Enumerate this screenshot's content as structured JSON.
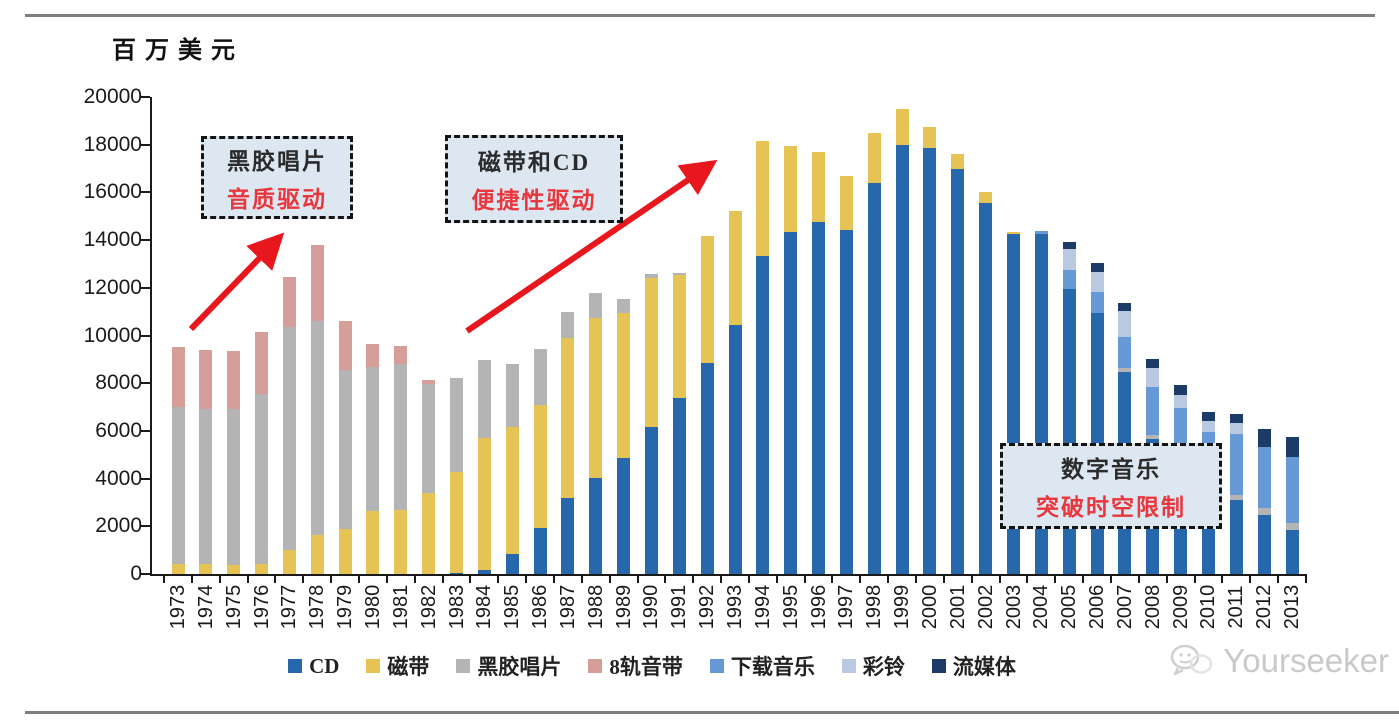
{
  "page": {
    "y_axis_title": "百万美元",
    "watermark": "Yourseeker"
  },
  "chart_data": {
    "type": "bar",
    "stacked": true,
    "title": "",
    "xlabel": "",
    "ylabel": "百万美元",
    "ylim": [
      0,
      20000
    ],
    "ytick_step": 2000,
    "grid": false,
    "legend_position": "bottom",
    "categories": [
      "1973",
      "1974",
      "1975",
      "1976",
      "1977",
      "1978",
      "1979",
      "1980",
      "1981",
      "1982",
      "1983",
      "1984",
      "1985",
      "1986",
      "1987",
      "1988",
      "1989",
      "1990",
      "1991",
      "1992",
      "1993",
      "1994",
      "1995",
      "1996",
      "1997",
      "1998",
      "1999",
      "2000",
      "2001",
      "2002",
      "2003",
      "2004",
      "2005",
      "2006",
      "2007",
      "2008",
      "2009",
      "2010",
      "2011",
      "2012",
      "2013"
    ],
    "series": [
      {
        "name": "CD",
        "color": "#2767ab",
        "values": [
          0,
          0,
          0,
          0,
          0,
          0,
          0,
          0,
          0,
          0,
          50,
          150,
          830,
          1920,
          3170,
          4010,
          4850,
          6150,
          7400,
          8840,
          10440,
          13350,
          14350,
          14770,
          14420,
          16380,
          17990,
          17850,
          16980,
          15540,
          14250,
          14260,
          11950,
          10950,
          8480,
          5650,
          4570,
          3660,
          3110,
          2470,
          1850
        ]
      },
      {
        "name": "磁带",
        "color": "#e5c455",
        "values": [
          440,
          400,
          380,
          440,
          1000,
          1630,
          1900,
          2630,
          2700,
          3400,
          4240,
          5560,
          5350,
          5170,
          6710,
          6710,
          6110,
          6250,
          5120,
          5350,
          4770,
          4790,
          3580,
          2920,
          2270,
          2100,
          1510,
          910,
          620,
          490,
          100,
          0,
          0,
          0,
          0,
          0,
          0,
          0,
          0,
          0,
          0
        ]
      },
      {
        "name": "黑胶唱片",
        "color": "#b4b4b4",
        "values": [
          6560,
          6530,
          6520,
          7090,
          9350,
          8960,
          6670,
          6040,
          6110,
          4580,
          3940,
          3260,
          2620,
          2340,
          1090,
          1080,
          560,
          170,
          100,
          0,
          0,
          0,
          0,
          0,
          0,
          0,
          0,
          0,
          0,
          0,
          0,
          0,
          0,
          0,
          140,
          180,
          210,
          180,
          210,
          280,
          280
        ]
      },
      {
        "name": "8轨音带",
        "color": "#d69e98",
        "values": [
          2500,
          2470,
          2460,
          2610,
          2110,
          3190,
          2040,
          970,
          730,
          150,
          0,
          0,
          0,
          0,
          0,
          0,
          0,
          0,
          0,
          0,
          0,
          0,
          0,
          0,
          0,
          0,
          0,
          0,
          0,
          0,
          0,
          0,
          0,
          0,
          0,
          0,
          0,
          0,
          0,
          0,
          0
        ]
      },
      {
        "name": "下载音乐",
        "color": "#6699d6",
        "values": [
          0,
          0,
          0,
          0,
          0,
          0,
          0,
          0,
          0,
          0,
          0,
          0,
          0,
          0,
          0,
          0,
          0,
          0,
          0,
          0,
          0,
          0,
          0,
          0,
          0,
          0,
          0,
          0,
          0,
          0,
          0,
          140,
          780,
          880,
          1330,
          2030,
          2170,
          2120,
          2540,
          2590,
          2770
        ]
      },
      {
        "name": "彩铃",
        "color": "#b9c9e2",
        "values": [
          0,
          0,
          0,
          0,
          0,
          0,
          0,
          0,
          0,
          0,
          0,
          0,
          0,
          0,
          0,
          0,
          0,
          0,
          0,
          0,
          0,
          0,
          0,
          0,
          0,
          0,
          0,
          0,
          0,
          0,
          0,
          0,
          890,
          850,
          1080,
          770,
          560,
          450,
          460,
          0,
          0
        ]
      },
      {
        "name": "流媒体",
        "color": "#1c3b66",
        "values": [
          0,
          0,
          0,
          0,
          0,
          0,
          0,
          0,
          0,
          0,
          0,
          0,
          0,
          0,
          0,
          0,
          0,
          0,
          0,
          0,
          0,
          0,
          0,
          0,
          0,
          0,
          0,
          0,
          0,
          0,
          0,
          0,
          310,
          340,
          320,
          370,
          420,
          390,
          380,
          730,
          840
        ]
      }
    ],
    "annotations": [
      {
        "title": "黑胶唱片",
        "subtitle": "音质驱动"
      },
      {
        "title": "磁带和CD",
        "subtitle": "便捷性驱动"
      },
      {
        "title": "数字音乐",
        "subtitle": "突破时空限制"
      }
    ],
    "annotation_colors": {
      "title": "#2b2b2b",
      "subtitle": "#e8373d",
      "arrow": "#e8161d",
      "box_bg": "#dde7f2"
    }
  }
}
